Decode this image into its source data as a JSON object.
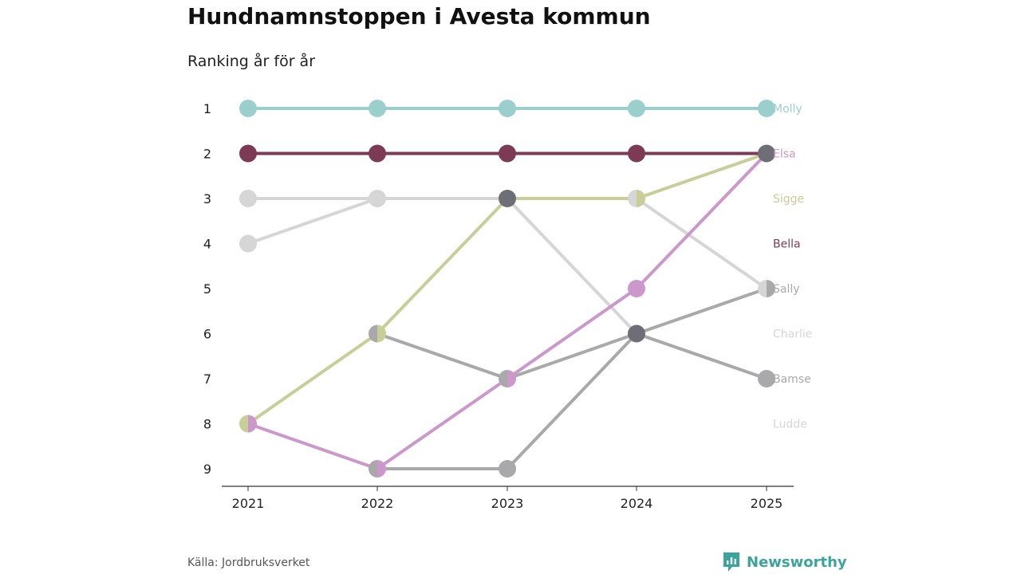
{
  "header": {
    "title": "Hundnamnstoppen i Avesta kommun",
    "subtitle": "Ranking år för år"
  },
  "footer": {
    "source": "Källa: Jordbruksverket",
    "brand": "Newsworthy",
    "brand_color": "#3aa59a"
  },
  "chart_data": {
    "type": "line",
    "title": "Hundnamnstoppen i Avesta kommun",
    "subtitle": "Ranking år för år",
    "xlabel": "",
    "ylabel": "",
    "x": [
      "2021",
      "2022",
      "2023",
      "2024",
      "2025"
    ],
    "y_ticks": [
      "1",
      "2",
      "3",
      "4",
      "5",
      "6",
      "7",
      "8",
      "9"
    ],
    "ylim": [
      1,
      9
    ],
    "y_inverted": true,
    "grid": false,
    "series": [
      {
        "name": "Charlie",
        "color": "#d6d6d6",
        "values": [
          4,
          3,
          3,
          6,
          null
        ],
        "label_rank": 6
      },
      {
        "name": "Ludde",
        "color": "#d6d6d6",
        "values": [
          3,
          3,
          3,
          3,
          5
        ],
        "label_rank": 8
      },
      {
        "name": "Bamse",
        "color": "#a9a9ab",
        "values": [
          null,
          6,
          7,
          6,
          7
        ],
        "label_rank": 7
      },
      {
        "name": "Sally",
        "color": "#a9a9ab",
        "values": [
          null,
          9,
          9,
          6,
          5
        ],
        "label_rank": 5
      },
      {
        "name": "Bella",
        "color": "#7d3a54",
        "values": [
          2,
          2,
          2,
          2,
          2
        ],
        "label_rank": 4
      },
      {
        "name": "Sigge",
        "color": "#c9cd98",
        "values": [
          8,
          6,
          3,
          3,
          2
        ],
        "label_rank": 3
      },
      {
        "name": "Elsa",
        "color": "#cc97cb",
        "values": [
          8,
          9,
          7,
          5,
          2
        ],
        "label_rank": 2
      },
      {
        "name": "Molly",
        "color": "#9bcfcd",
        "values": [
          1,
          1,
          1,
          1,
          1
        ],
        "label_rank": 1
      }
    ],
    "tie_color": "#6e6e76"
  }
}
